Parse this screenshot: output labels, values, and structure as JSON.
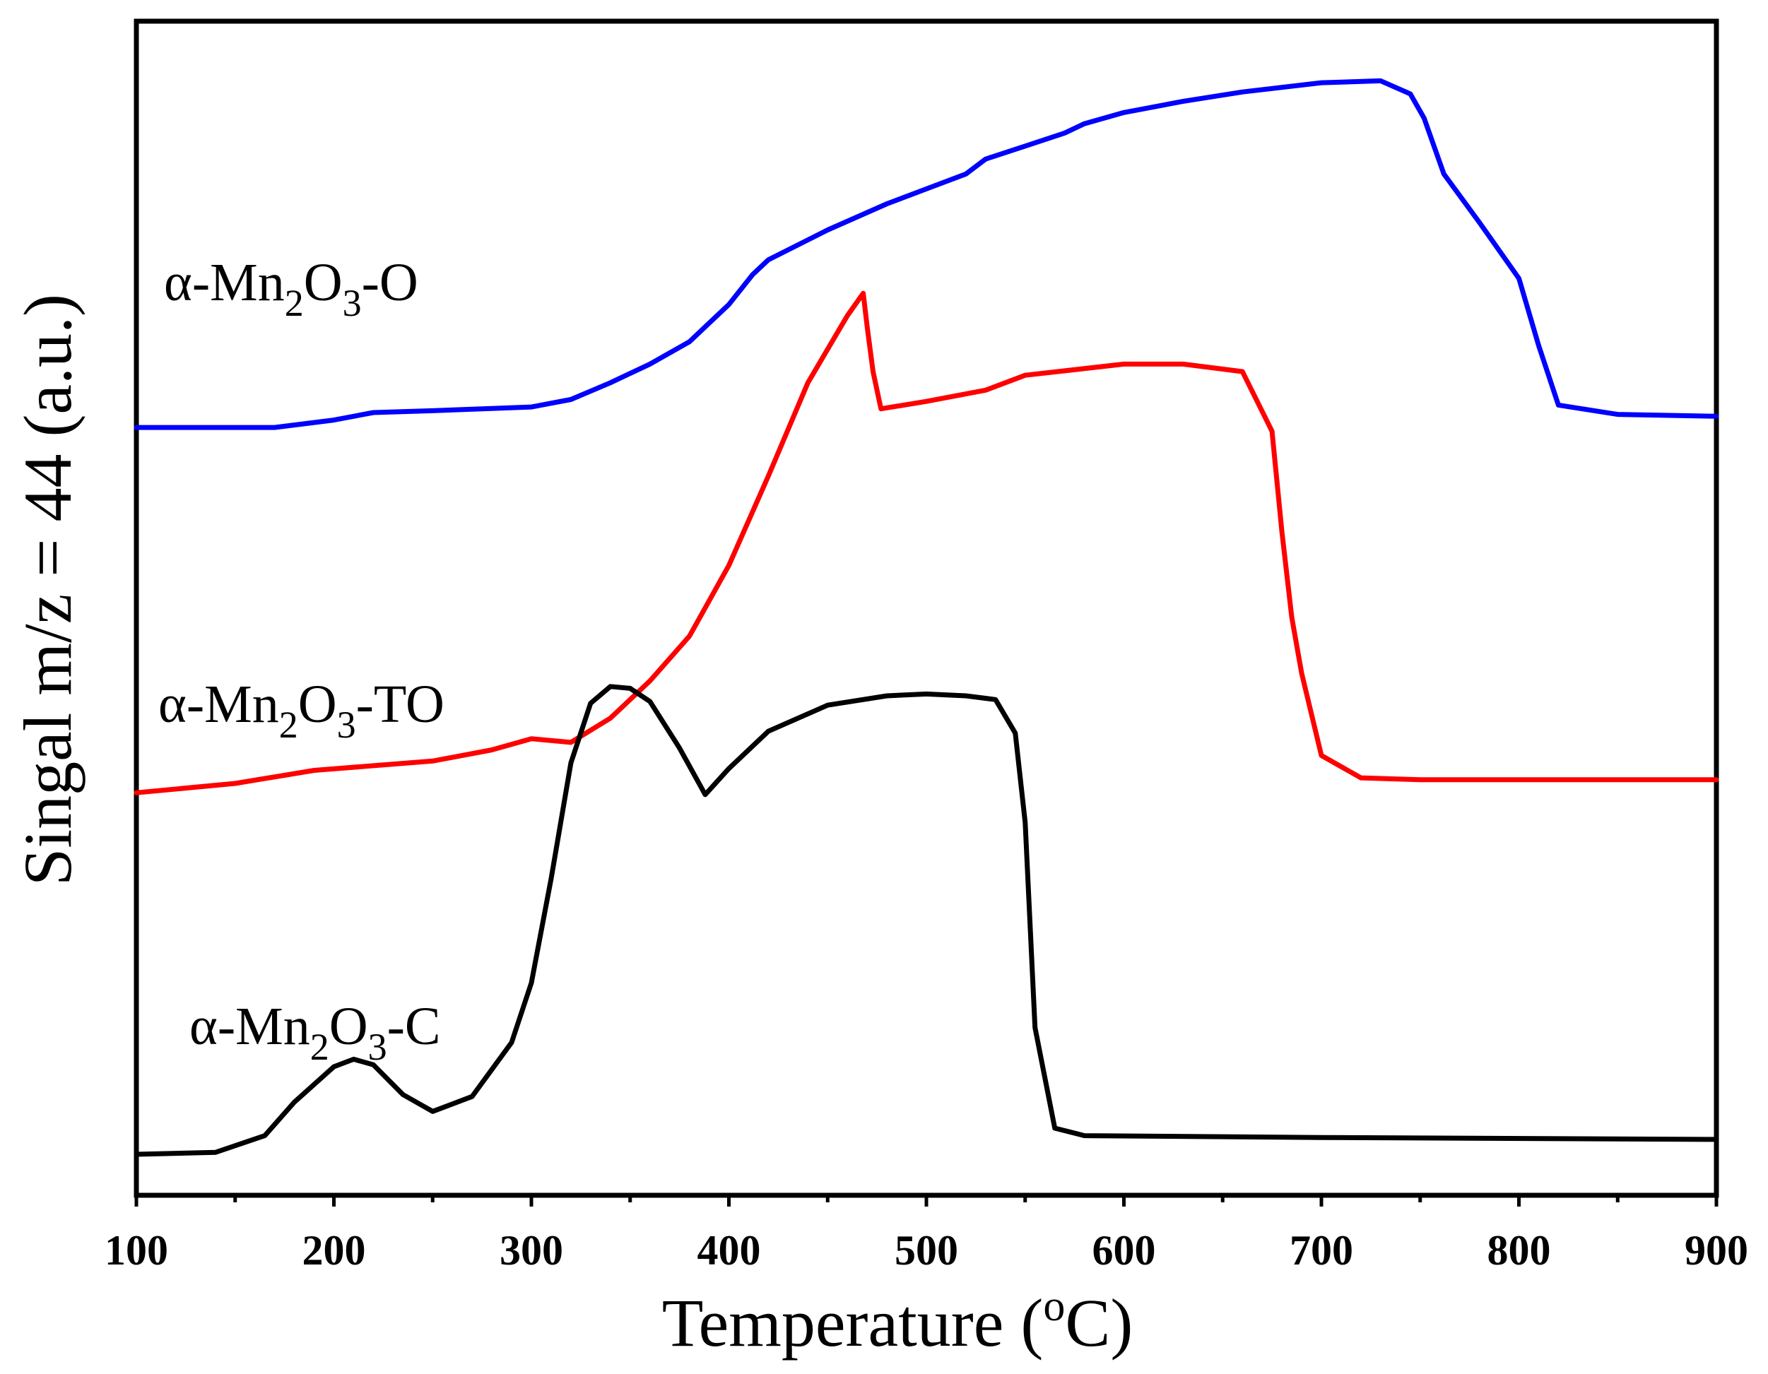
{
  "chart_data": {
    "type": "line",
    "title": "",
    "xlabel_main": "Temperature (",
    "xlabel_sup": "o",
    "xlabel_end": "C)",
    "ylabel": "Singal m/z = 44 (a.u.)",
    "xlim": [
      100,
      900
    ],
    "xticks": [
      "100",
      "200",
      "300",
      "400",
      "500",
      "600",
      "700",
      "800",
      "900"
    ],
    "yticks_visible": false,
    "grid": false,
    "series": [
      {
        "name": "α-Mn2O3-O",
        "label_parts": {
          "pre": "α-Mn",
          "sub1": "2",
          "mid": "O",
          "sub2": "3",
          "post": "-O"
        },
        "color": "#0000ff",
        "x": [
          100,
          170,
          200,
          220,
          250,
          300,
          320,
          340,
          360,
          380,
          400,
          412,
          420,
          450,
          480,
          500,
          520,
          530,
          550,
          570,
          580,
          600,
          630,
          660,
          700,
          730,
          745,
          752,
          762,
          780,
          800,
          810,
          820,
          850,
          900
        ],
        "y": [
          6.6,
          6.6,
          6.8,
          7.0,
          7.05,
          7.15,
          7.35,
          7.8,
          8.3,
          8.9,
          9.9,
          10.7,
          11.1,
          11.9,
          12.6,
          13.0,
          13.4,
          13.8,
          14.15,
          14.5,
          14.75,
          15.05,
          15.35,
          15.6,
          15.85,
          15.9,
          15.55,
          14.9,
          13.4,
          12.1,
          10.6,
          8.8,
          7.2,
          6.95,
          6.9
        ]
      },
      {
        "name": "α-Mn2O3-TO",
        "label_parts": {
          "pre": "α-Mn",
          "sub1": "2",
          "mid": "O",
          "sub2": "3",
          "post": "-TO"
        },
        "color": "#ff0000",
        "x": [
          100,
          150,
          190,
          250,
          280,
          300,
          320,
          340,
          360,
          380,
          400,
          420,
          440,
          460,
          468,
          470,
          473,
          477,
          500,
          530,
          550,
          600,
          630,
          660,
          675,
          680,
          685,
          690,
          700,
          720,
          750,
          900
        ],
        "y": [
          -3.2,
          -2.95,
          -2.6,
          -2.35,
          -2.05,
          -1.75,
          -1.85,
          -1.2,
          -0.2,
          1.0,
          2.9,
          5.3,
          7.8,
          9.6,
          10.2,
          9.3,
          8.1,
          7.1,
          7.3,
          7.6,
          8.0,
          8.3,
          8.3,
          8.1,
          6.5,
          3.8,
          1.5,
          0.0,
          -2.2,
          -2.8,
          -2.85,
          -2.85
        ]
      },
      {
        "name": "α-Mn2O3-C",
        "label_parts": {
          "pre": "α-Mn",
          "sub1": "2",
          "mid": "O",
          "sub2": "3",
          "post": "-C"
        },
        "color": "#000000",
        "x": [
          100,
          140,
          165,
          180,
          200,
          210,
          220,
          235,
          250,
          270,
          290,
          300,
          310,
          320,
          330,
          340,
          350,
          360,
          375,
          388,
          400,
          420,
          450,
          480,
          500,
          520,
          535,
          545,
          550,
          555,
          565,
          580,
          700,
          900
        ],
        "y": [
          -12.9,
          -12.85,
          -12.4,
          -11.5,
          -10.55,
          -10.35,
          -10.5,
          -11.3,
          -11.75,
          -11.35,
          -9.9,
          -8.3,
          -5.5,
          -2.4,
          -0.8,
          -0.35,
          -0.4,
          -0.75,
          -2.0,
          -3.25,
          -2.55,
          -1.55,
          -0.85,
          -0.6,
          -0.55,
          -0.6,
          -0.7,
          -1.6,
          -4.0,
          -9.5,
          -12.2,
          -12.4,
          -12.45,
          -12.5
        ]
      }
    ]
  }
}
